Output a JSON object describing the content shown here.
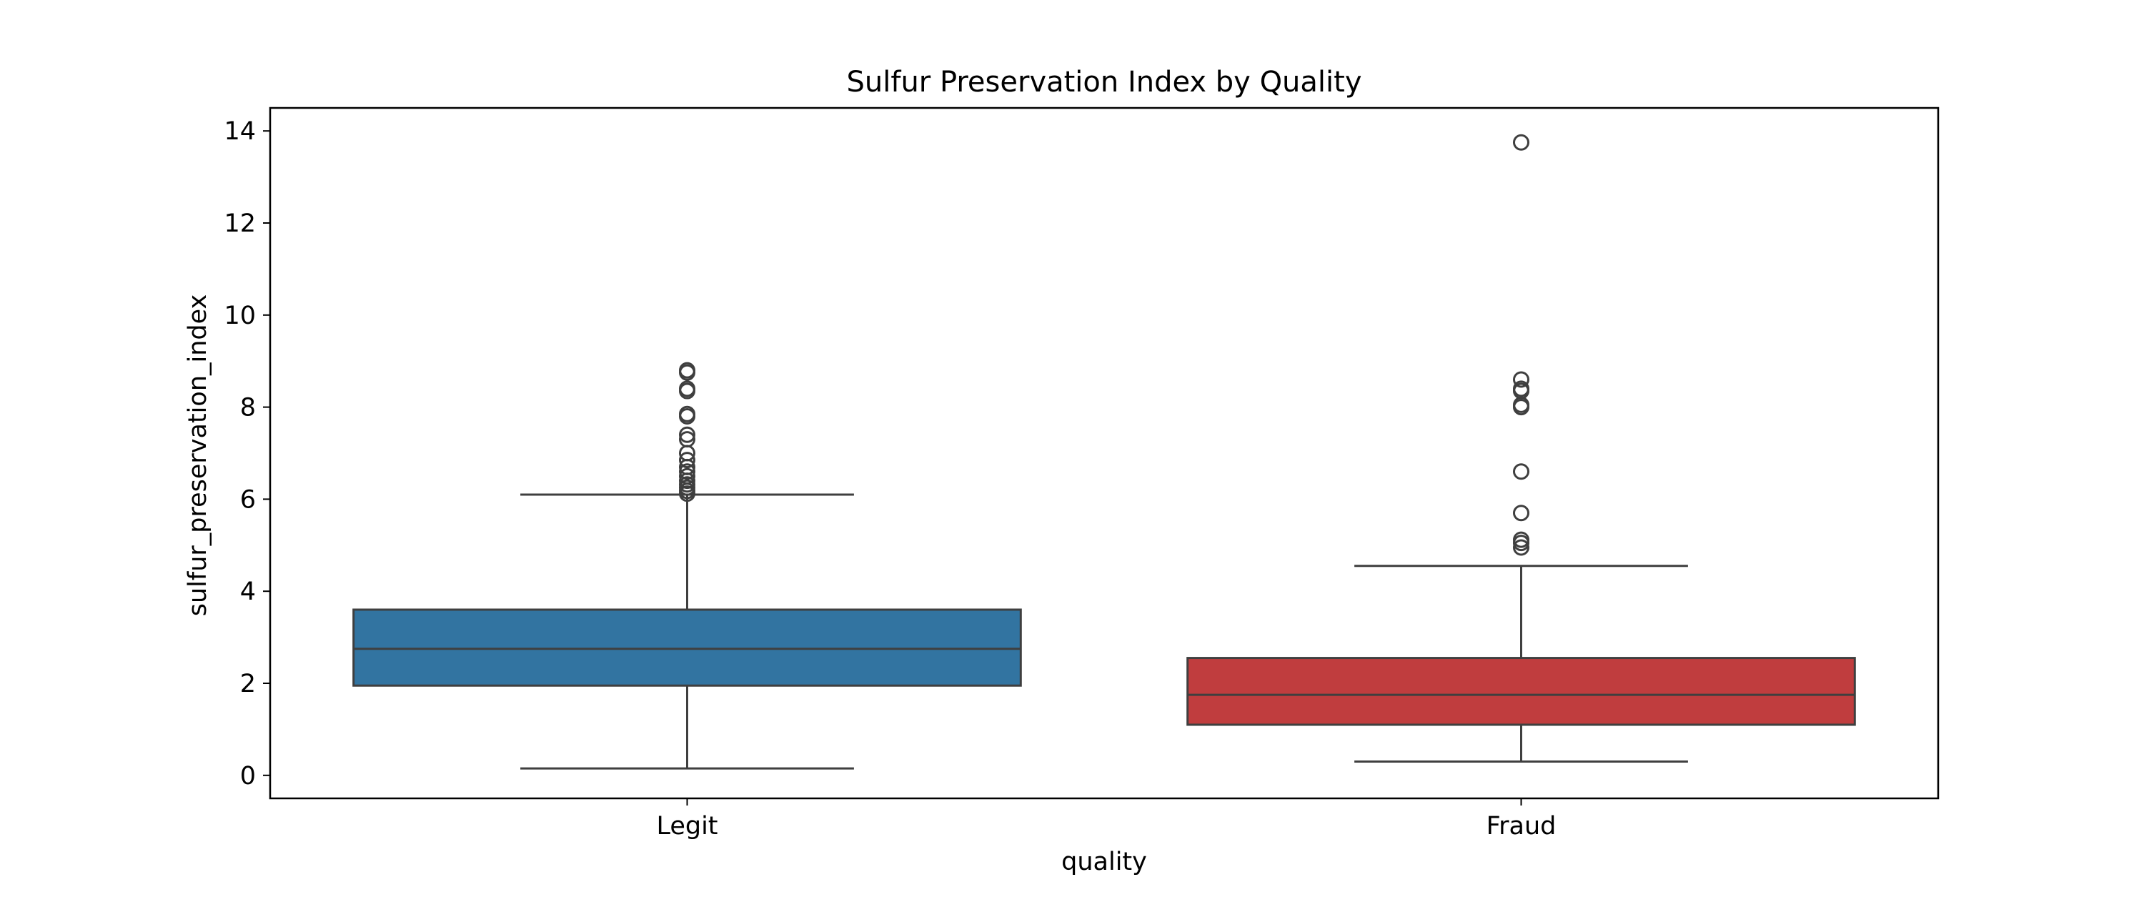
{
  "chart_data": {
    "type": "box",
    "title": "Sulfur Preservation Index by Quality",
    "xlabel": "quality",
    "ylabel": "sulfur_preservation_index",
    "categories": [
      "Legit",
      "Fraud"
    ],
    "ylim": [
      -0.5,
      14.5
    ],
    "yticks": [
      0,
      2,
      4,
      6,
      8,
      10,
      12,
      14
    ],
    "grid": false,
    "legend": "none",
    "series": [
      {
        "category": "Legit",
        "color": "#3274a1",
        "whisker_low": 0.15,
        "q1": 1.95,
        "median": 2.75,
        "q3": 3.6,
        "whisker_high": 6.1,
        "outliers": [
          6.12,
          6.18,
          6.25,
          6.32,
          6.4,
          6.5,
          6.6,
          6.7,
          6.85,
          7.0,
          7.3,
          7.4,
          7.8,
          7.85,
          8.35,
          8.4,
          8.75,
          8.8
        ]
      },
      {
        "category": "Fraud",
        "color": "#c03d3e",
        "whisker_low": 0.3,
        "q1": 1.1,
        "median": 1.75,
        "q3": 2.55,
        "whisker_high": 4.55,
        "outliers": [
          4.95,
          5.05,
          5.12,
          5.7,
          6.6,
          8.0,
          8.05,
          8.35,
          8.4,
          8.6,
          13.75
        ]
      }
    ]
  }
}
